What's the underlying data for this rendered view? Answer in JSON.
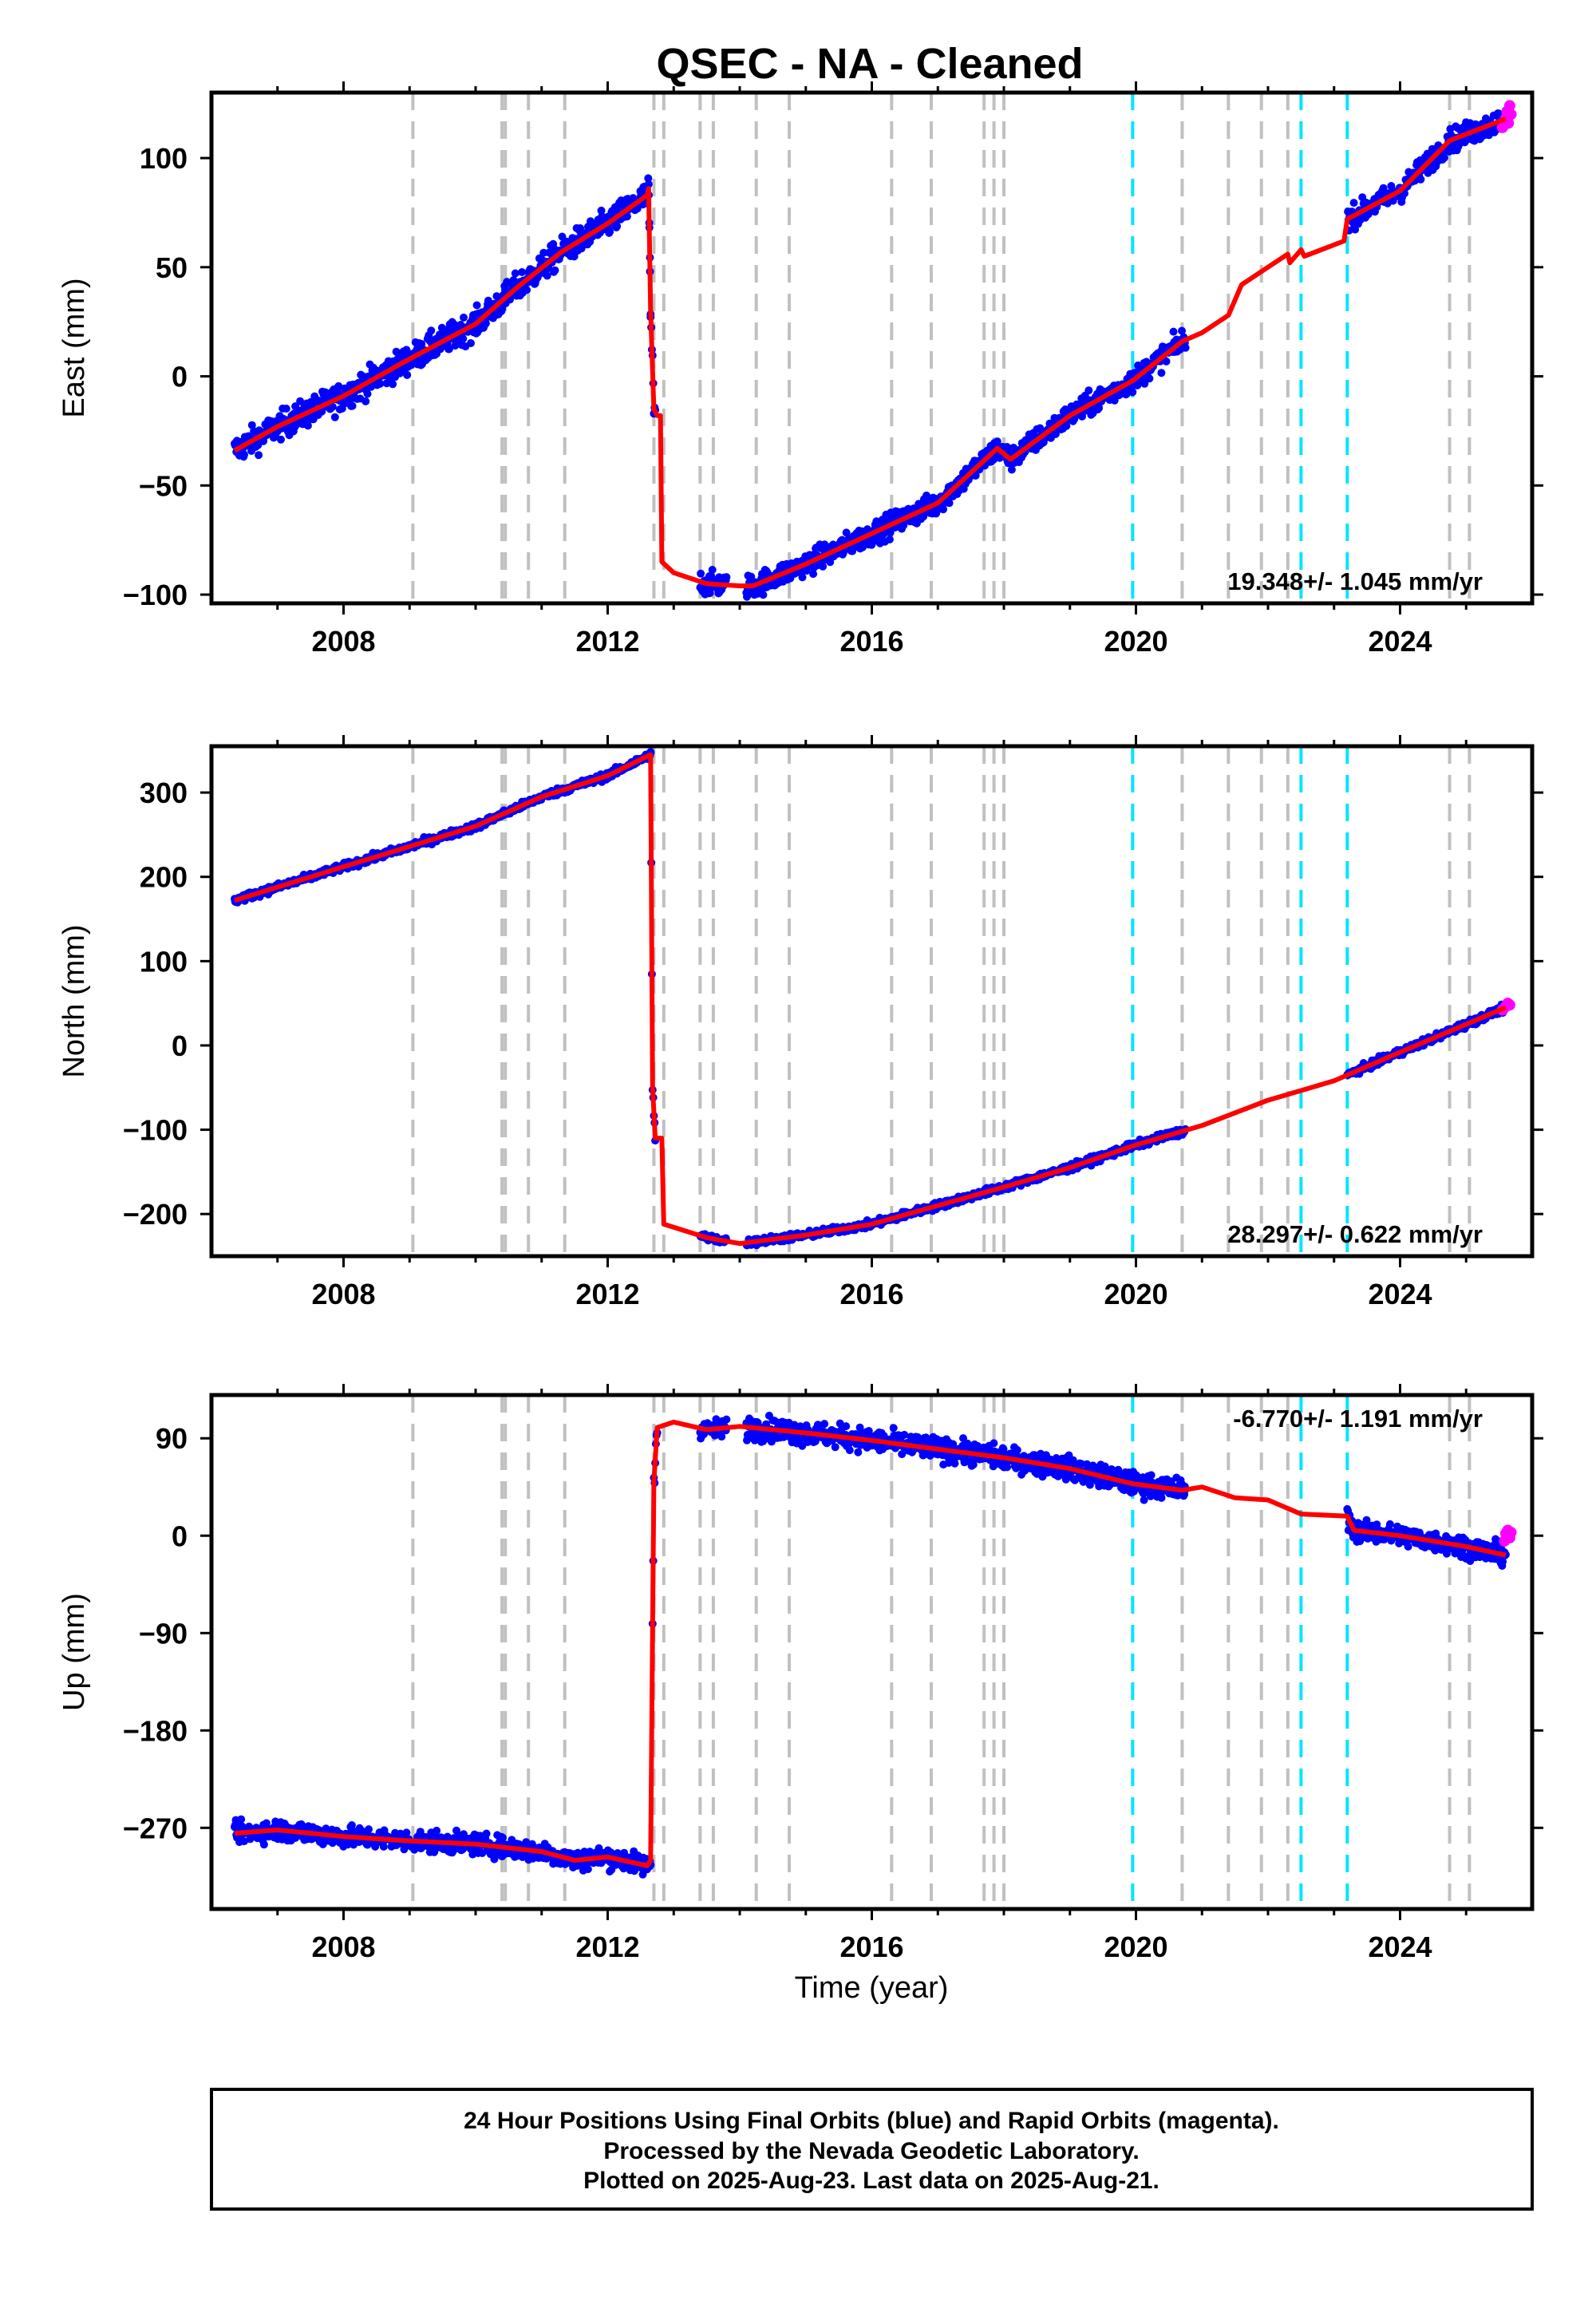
{
  "title": "QSEC  - NA - Cleaned",
  "xlabel": "Time (year)",
  "footer": [
    "24 Hour Positions Using Final Orbits (blue) and Rapid Orbits (magenta).",
    "Processed by the Nevada Geodetic Laboratory.",
    "Plotted on 2025-Aug-23. Last data on 2025-Aug-21."
  ],
  "colors": {
    "final_orbits": "#0000ff",
    "rapid_orbits": "#ff00ff",
    "model": "#ff0000",
    "equipment_change": "#c0c0c0",
    "earthquake": "#00e5ff"
  },
  "chart_data": [
    {
      "type": "scatter",
      "name": "east",
      "ylabel": "East (mm)",
      "xlim": [
        2006.0,
        2026.0
      ],
      "ylim": [
        -104,
        130
      ],
      "xticks": [
        2008,
        2012,
        2016,
        2020,
        2024
      ],
      "yticks": [
        -100,
        -50,
        0,
        50,
        100
      ],
      "rate_label": "19.348+/- 1.045 mm/yr",
      "rate_position": "bottom-right",
      "equipment_lines": [
        2009.05,
        2010.4,
        2010.45,
        2010.8,
        2011.35,
        2012.7,
        2012.85,
        2013.4,
        2013.6,
        2014.25,
        2014.75,
        2016.3,
        2016.9,
        2017.7,
        2017.85,
        2018.0,
        2020.7,
        2021.4,
        2021.9,
        2022.3,
        2024.75,
        2025.05
      ],
      "earthquake_lines": [
        2019.95,
        2022.5,
        2023.2
      ],
      "model": [
        [
          2006.35,
          -34
        ],
        [
          2007.0,
          -23
        ],
        [
          2008.0,
          -9
        ],
        [
          2009.0,
          8
        ],
        [
          2010.0,
          24
        ],
        [
          2010.6,
          40
        ],
        [
          2011.3,
          57
        ],
        [
          2012.0,
          70
        ],
        [
          2012.6,
          83
        ],
        [
          2012.62,
          86
        ],
        [
          2012.65,
          30
        ],
        [
          2012.7,
          -15
        ],
        [
          2012.75,
          -18
        ],
        [
          2012.8,
          -18
        ],
        [
          2012.82,
          -85
        ],
        [
          2013.0,
          -90
        ],
        [
          2013.5,
          -95
        ],
        [
          2014.0,
          -96
        ],
        [
          2014.2,
          -96
        ],
        [
          2015.0,
          -86
        ],
        [
          2016.0,
          -72
        ],
        [
          2017.0,
          -58
        ],
        [
          2017.9,
          -33
        ],
        [
          2018.1,
          -38
        ],
        [
          2019.0,
          -18
        ],
        [
          2019.95,
          -2
        ],
        [
          2020.7,
          16
        ],
        [
          2021.0,
          20
        ],
        [
          2021.4,
          28
        ],
        [
          2021.6,
          42
        ],
        [
          2022.0,
          50
        ],
        [
          2022.3,
          56
        ],
        [
          2022.33,
          52
        ],
        [
          2022.5,
          58
        ],
        [
          2022.55,
          55
        ],
        [
          2023.15,
          62
        ],
        [
          2023.2,
          72
        ],
        [
          2024.0,
          85
        ],
        [
          2024.75,
          108
        ],
        [
          2025.6,
          118
        ]
      ],
      "data_segments": [
        [
          2006.35,
          2012.65,
          6
        ],
        [
          2012.62,
          2012.72,
          8
        ],
        [
          2013.4,
          2013.8,
          5
        ],
        [
          2014.1,
          2016.8,
          5
        ],
        [
          2016.8,
          2020.75,
          5
        ],
        [
          2023.2,
          2025.6,
          5
        ]
      ],
      "rapid_points": [
        [
          2025.55,
          114
        ],
        [
          2025.6,
          118
        ],
        [
          2025.62,
          121
        ],
        [
          2025.64,
          116
        ],
        [
          2025.66,
          124
        ],
        [
          2025.68,
          120
        ]
      ]
    },
    {
      "type": "scatter",
      "name": "north",
      "ylabel": "North (mm)",
      "xlim": [
        2006.0,
        2026.0
      ],
      "ylim": [
        -250,
        355
      ],
      "xticks": [
        2008,
        2012,
        2016,
        2020,
        2024
      ],
      "yticks": [
        -200,
        -100,
        0,
        100,
        200,
        300
      ],
      "rate_label": "28.297+/- 0.622 mm/yr",
      "rate_position": "bottom-right",
      "equipment_lines": [
        2009.05,
        2010.4,
        2010.45,
        2010.8,
        2011.35,
        2012.7,
        2012.85,
        2013.4,
        2013.6,
        2014.25,
        2014.75,
        2016.3,
        2016.9,
        2017.7,
        2017.85,
        2018.0,
        2020.7,
        2021.4,
        2021.9,
        2022.3,
        2024.75,
        2025.05
      ],
      "earthquake_lines": [
        2019.95,
        2022.5,
        2023.2
      ],
      "model": [
        [
          2006.35,
          172
        ],
        [
          2008.0,
          212
        ],
        [
          2010.0,
          260
        ],
        [
          2011.0,
          295
        ],
        [
          2012.0,
          320
        ],
        [
          2012.65,
          345
        ],
        [
          2012.68,
          -50
        ],
        [
          2012.72,
          -110
        ],
        [
          2012.82,
          -110
        ],
        [
          2012.85,
          -212
        ],
        [
          2013.5,
          -228
        ],
        [
          2014.0,
          -235
        ],
        [
          2014.5,
          -230
        ],
        [
          2015.0,
          -225
        ],
        [
          2016.0,
          -212
        ],
        [
          2017.0,
          -190
        ],
        [
          2018.0,
          -168
        ],
        [
          2019.0,
          -145
        ],
        [
          2020.0,
          -118
        ],
        [
          2021.0,
          -95
        ],
        [
          2022.0,
          -65
        ],
        [
          2023.0,
          -42
        ],
        [
          2024.0,
          -8
        ],
        [
          2025.0,
          25
        ],
        [
          2025.6,
          45
        ]
      ],
      "data_segments": [
        [
          2006.35,
          2012.65,
          4
        ],
        [
          2012.65,
          2012.72,
          6
        ],
        [
          2013.4,
          2013.8,
          4
        ],
        [
          2014.1,
          2020.75,
          4
        ],
        [
          2023.2,
          2025.6,
          4
        ]
      ],
      "rapid_points": [
        [
          2025.55,
          42
        ],
        [
          2025.6,
          46
        ],
        [
          2025.63,
          50
        ],
        [
          2025.66,
          48
        ]
      ]
    },
    {
      "type": "scatter",
      "name": "up",
      "ylabel": "Up (mm)",
      "xlim": [
        2006.0,
        2026.0
      ],
      "ylim": [
        -345,
        130
      ],
      "xticks": [
        2008,
        2012,
        2016,
        2020,
        2024
      ],
      "yticks": [
        -270,
        -180,
        -90,
        0,
        90
      ],
      "rate_label": "-6.770+/- 1.191 mm/yr",
      "rate_position": "top-right",
      "equipment_lines": [
        2009.05,
        2010.4,
        2010.45,
        2010.8,
        2011.35,
        2012.7,
        2012.85,
        2013.4,
        2013.6,
        2014.25,
        2014.75,
        2016.3,
        2016.9,
        2017.7,
        2017.85,
        2018.0,
        2020.7,
        2021.4,
        2021.9,
        2022.3,
        2024.75,
        2025.05
      ],
      "earthquake_lines": [
        2019.95,
        2022.5,
        2023.2
      ],
      "model": [
        [
          2006.35,
          -275
        ],
        [
          2007.0,
          -272
        ],
        [
          2008.0,
          -278
        ],
        [
          2009.0,
          -282
        ],
        [
          2010.0,
          -285
        ],
        [
          2011.0,
          -292
        ],
        [
          2011.5,
          -300
        ],
        [
          2012.0,
          -297
        ],
        [
          2012.6,
          -305
        ],
        [
          2012.65,
          -300
        ],
        [
          2012.7,
          50
        ],
        [
          2012.75,
          100
        ],
        [
          2013.0,
          105
        ],
        [
          2013.5,
          98
        ],
        [
          2014.0,
          101
        ],
        [
          2015.0,
          95
        ],
        [
          2016.0,
          88
        ],
        [
          2017.0,
          80
        ],
        [
          2018.0,
          72
        ],
        [
          2019.0,
          62
        ],
        [
          2019.95,
          48
        ],
        [
          2020.7,
          42
        ],
        [
          2021.0,
          45
        ],
        [
          2021.5,
          35
        ],
        [
          2022.0,
          33
        ],
        [
          2022.5,
          20
        ],
        [
          2023.2,
          18
        ],
        [
          2023.3,
          5
        ],
        [
          2024.0,
          0
        ],
        [
          2025.0,
          -10
        ],
        [
          2025.6,
          -18
        ]
      ],
      "data_segments": [
        [
          2006.35,
          2012.65,
          9
        ],
        [
          2012.68,
          2012.75,
          12
        ],
        [
          2013.4,
          2013.8,
          8
        ],
        [
          2014.1,
          2020.75,
          10
        ],
        [
          2023.2,
          2025.6,
          9
        ]
      ],
      "rapid_points": [
        [
          2025.58,
          -5
        ],
        [
          2025.6,
          2
        ],
        [
          2025.63,
          5
        ],
        [
          2025.66,
          -2
        ],
        [
          2025.68,
          3
        ]
      ]
    }
  ]
}
